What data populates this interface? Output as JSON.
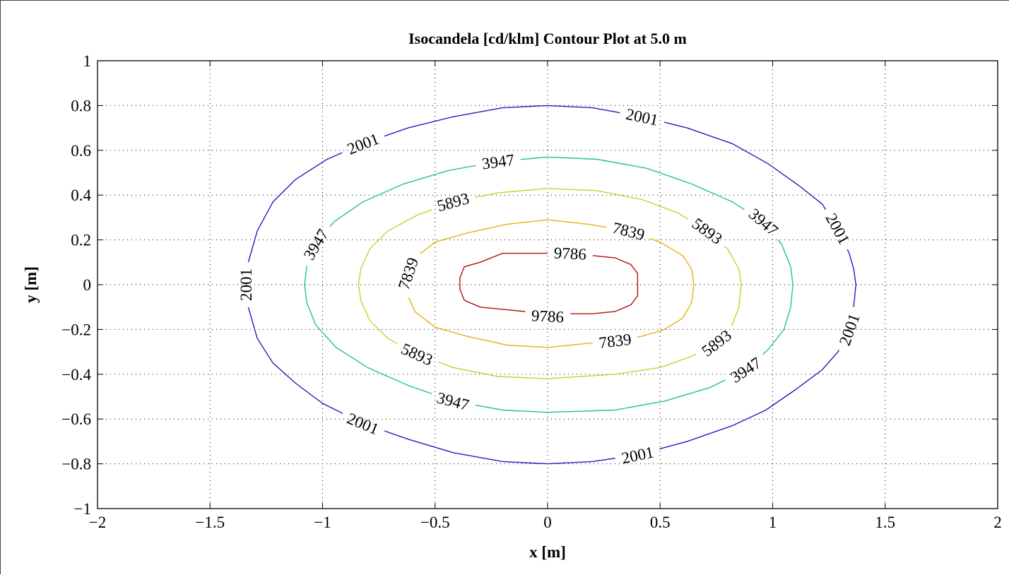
{
  "chart_data": {
    "type": "contour",
    "title": "Isocandela [cd/klm] Contour Plot at 5.0 m",
    "xlabel": "x [m]",
    "ylabel": "y [m]",
    "xlim": [
      -2,
      2
    ],
    "ylim": [
      -1,
      1
    ],
    "xticks": [
      -2,
      -1.5,
      -1,
      -0.5,
      0,
      0.5,
      1,
      1.5,
      2
    ],
    "xtick_labels": [
      "−2",
      "−1.5",
      "−1",
      "−0.5",
      "0",
      "0.5",
      "1",
      "1.5",
      "2"
    ],
    "yticks": [
      -1,
      -0.8,
      -0.6,
      -0.4,
      -0.2,
      0,
      0.2,
      0.4,
      0.6,
      0.8,
      1
    ],
    "ytick_labels": [
      "−1",
      "−0.8",
      "−0.6",
      "−0.4",
      "−0.2",
      "0",
      "0.2",
      "0.4",
      "0.6",
      "0.8",
      "1"
    ],
    "grid": true,
    "levels": [
      {
        "value": 2001,
        "label": "2001",
        "color": "#1f1fbf",
        "points": [
          [
            1.37,
            0
          ],
          [
            1.36,
            -0.1
          ],
          [
            1.34,
            -0.2
          ],
          [
            1.29,
            -0.3
          ],
          [
            1.22,
            -0.38
          ],
          [
            1.1,
            -0.47
          ],
          [
            0.97,
            -0.56
          ],
          [
            0.82,
            -0.63
          ],
          [
            0.62,
            -0.7
          ],
          [
            0.4,
            -0.76
          ],
          [
            0.2,
            -0.79
          ],
          [
            0,
            -0.8
          ],
          [
            -0.2,
            -0.79
          ],
          [
            -0.42,
            -0.75
          ],
          [
            -0.62,
            -0.69
          ],
          [
            -0.82,
            -0.62
          ],
          [
            -1,
            -0.53
          ],
          [
            -1.12,
            -0.44
          ],
          [
            -1.22,
            -0.35
          ],
          [
            -1.29,
            -0.24
          ],
          [
            -1.33,
            -0.1
          ],
          [
            -1.34,
            0
          ],
          [
            -1.33,
            0.1
          ],
          [
            -1.29,
            0.24
          ],
          [
            -1.22,
            0.37
          ],
          [
            -1.12,
            0.47
          ],
          [
            -0.98,
            0.56
          ],
          [
            -0.82,
            0.63
          ],
          [
            -0.62,
            0.7
          ],
          [
            -0.42,
            0.75
          ],
          [
            -0.2,
            0.79
          ],
          [
            0,
            0.8
          ],
          [
            0.2,
            0.79
          ],
          [
            0.42,
            0.75
          ],
          [
            0.62,
            0.7
          ],
          [
            0.82,
            0.63
          ],
          [
            0.98,
            0.54
          ],
          [
            1.12,
            0.44
          ],
          [
            1.22,
            0.36
          ],
          [
            1.29,
            0.25
          ],
          [
            1.34,
            0.14
          ],
          [
            1.36,
            0.07
          ],
          [
            1.37,
            0
          ]
        ],
        "labels_at": [
          [
            0.49,
            0.72
          ],
          [
            -0.75,
            0.64
          ],
          [
            1.29,
            0.22
          ],
          [
            -1.34,
            0.02
          ],
          [
            1.33,
            -0.2
          ],
          [
            -0.75,
            -0.62
          ],
          [
            0.5,
            -0.73
          ]
        ]
      },
      {
        "value": 3947,
        "label": "3947",
        "color": "#22c0a0",
        "points": [
          [
            1.09,
            0
          ],
          [
            1.08,
            -0.1
          ],
          [
            1.05,
            -0.2
          ],
          [
            0.98,
            -0.29
          ],
          [
            0.88,
            -0.38
          ],
          [
            0.72,
            -0.46
          ],
          [
            0.52,
            -0.52
          ],
          [
            0.3,
            -0.56
          ],
          [
            0,
            -0.57
          ],
          [
            -0.2,
            -0.56
          ],
          [
            -0.42,
            -0.52
          ],
          [
            -0.62,
            -0.45
          ],
          [
            -0.8,
            -0.37
          ],
          [
            -0.94,
            -0.28
          ],
          [
            -1.03,
            -0.18
          ],
          [
            -1.07,
            -0.08
          ],
          [
            -1.08,
            0
          ],
          [
            -1.07,
            0.08
          ],
          [
            -1.03,
            0.18
          ],
          [
            -0.95,
            0.28
          ],
          [
            -0.82,
            0.37
          ],
          [
            -0.64,
            0.45
          ],
          [
            -0.44,
            0.51
          ],
          [
            -0.22,
            0.55
          ],
          [
            0,
            0.57
          ],
          [
            0.22,
            0.56
          ],
          [
            0.44,
            0.52
          ],
          [
            0.64,
            0.45
          ],
          [
            0.82,
            0.37
          ],
          [
            0.96,
            0.28
          ],
          [
            1.04,
            0.18
          ],
          [
            1.08,
            0.08
          ],
          [
            1.09,
            0
          ]
        ],
        "labels_at": [
          [
            -0.13,
            0.56
          ],
          [
            0.92,
            0.26
          ],
          [
            -1.04,
            0.14
          ],
          [
            0.97,
            -0.4
          ],
          [
            -0.5,
            -0.5
          ]
        ]
      },
      {
        "value": 5893,
        "label": "5893",
        "color": "#a8e030",
        "points": [
          [
            0.86,
            0
          ],
          [
            0.85,
            -0.1
          ],
          [
            0.82,
            -0.18
          ],
          [
            0.75,
            -0.26
          ],
          [
            0.64,
            -0.32
          ],
          [
            0.5,
            -0.37
          ],
          [
            0.3,
            -0.4
          ],
          [
            0,
            -0.42
          ],
          [
            -0.22,
            -0.41
          ],
          [
            -0.42,
            -0.37
          ],
          [
            -0.58,
            -0.31
          ],
          [
            -0.71,
            -0.24
          ],
          [
            -0.79,
            -0.16
          ],
          [
            -0.83,
            -0.07
          ],
          [
            -0.84,
            0
          ],
          [
            -0.83,
            0.07
          ],
          [
            -0.79,
            0.16
          ],
          [
            -0.71,
            0.24
          ],
          [
            -0.58,
            0.31
          ],
          [
            -0.42,
            0.37
          ],
          [
            -0.22,
            0.41
          ],
          [
            0,
            0.43
          ],
          [
            0.22,
            0.42
          ],
          [
            0.42,
            0.38
          ],
          [
            0.58,
            0.32
          ],
          [
            0.71,
            0.24
          ],
          [
            0.8,
            0.16
          ],
          [
            0.85,
            0.07
          ],
          [
            0.86,
            0
          ]
        ],
        "labels_at": [
          [
            -0.42,
            0.38
          ],
          [
            0.74,
            0.27
          ],
          [
            -0.59,
            -0.27
          ],
          [
            0.72,
            -0.31
          ]
        ]
      },
      {
        "value": 7839,
        "label": "7839",
        "color": "#e8b010",
        "points": [
          [
            0.65,
            0
          ],
          [
            0.64,
            -0.08
          ],
          [
            0.6,
            -0.15
          ],
          [
            0.52,
            -0.2
          ],
          [
            0.42,
            -0.23
          ],
          [
            0.3,
            -0.25
          ],
          [
            0.1,
            -0.27
          ],
          [
            0,
            -0.28
          ],
          [
            -0.18,
            -0.27
          ],
          [
            -0.36,
            -0.23
          ],
          [
            -0.5,
            -0.19
          ],
          [
            -0.59,
            -0.12
          ],
          [
            -0.62,
            -0.05
          ],
          [
            -0.63,
            0
          ],
          [
            -0.62,
            0.05
          ],
          [
            -0.59,
            0.12
          ],
          [
            -0.5,
            0.19
          ],
          [
            -0.36,
            0.23
          ],
          [
            -0.18,
            0.27
          ],
          [
            0,
            0.29
          ],
          [
            0.18,
            0.27
          ],
          [
            0.36,
            0.24
          ],
          [
            0.5,
            0.19
          ],
          [
            0.6,
            0.13
          ],
          [
            0.64,
            0.07
          ],
          [
            0.65,
            0
          ]
        ],
        "labels_at": [
          [
            0.42,
            0.2
          ],
          [
            -0.63,
            0.04
          ],
          [
            0.35,
            -0.25
          ]
        ]
      },
      {
        "value": 9786,
        "label": "9786",
        "color": "#b01010",
        "points": [
          [
            0.4,
            0
          ],
          [
            0.4,
            -0.05
          ],
          [
            0.37,
            -0.09
          ],
          [
            0.3,
            -0.12
          ],
          [
            0.2,
            -0.13
          ],
          [
            0.1,
            -0.13
          ],
          [
            0,
            -0.14
          ],
          [
            -0.1,
            -0.12
          ],
          [
            -0.2,
            -0.11
          ],
          [
            -0.3,
            -0.1
          ],
          [
            -0.37,
            -0.07
          ],
          [
            -0.39,
            -0.02
          ],
          [
            -0.39,
            0.03
          ],
          [
            -0.37,
            0.08
          ],
          [
            -0.3,
            0.1
          ],
          [
            -0.2,
            0.14
          ],
          [
            -0.1,
            0.14
          ],
          [
            0,
            0.14
          ],
          [
            0.1,
            0.14
          ],
          [
            0.2,
            0.13
          ],
          [
            0.3,
            0.12
          ],
          [
            0.37,
            0.09
          ],
          [
            0.4,
            0.05
          ],
          [
            0.4,
            0
          ]
        ],
        "labels_at": [
          [
            0.13,
            0.12
          ],
          [
            0.0,
            -0.13
          ]
        ]
      }
    ]
  }
}
